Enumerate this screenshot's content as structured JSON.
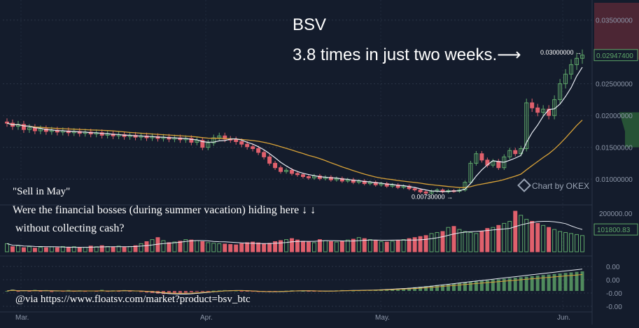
{
  "annotations": {
    "ticker": "BSV",
    "headline": "3.8 times in just two weeks.⟶",
    "sell_in_may": "\"Sell in May\"",
    "question_line1": "Were the financial bosses (during summer vacation) hiding here ↓ ↓",
    "question_line2": "without collecting cash?",
    "via": "@via https://www.floatsv.com/market?product=bsv_btc",
    "watermark": "Chart by OKEX"
  },
  "colors": {
    "background": "#141c2c",
    "up_candle": "#5fa86a",
    "down_candle": "#e0606c",
    "fast_ma": "#e8ecf4",
    "slow_ma": "#d8a238",
    "axis_text": "#8c96a8",
    "grid": "#2a3446"
  },
  "chart_data": {
    "type": "candlestick",
    "x_ticks": [
      "Mar.",
      "Apr.",
      "May.",
      "Jun."
    ],
    "price_axis": {
      "ticks": [
        "0.03500000",
        "0.02500000",
        "0.02000000",
        "0.01500000",
        "0.01000000"
      ],
      "ylim": [
        0.0065,
        0.0375
      ],
      "current_price_label": "0.02947400",
      "high_marker": {
        "label": "0.03000000 →",
        "value": 0.03
      },
      "low_marker": {
        "label": "0.00730000 →",
        "value": 0.0073
      }
    },
    "volume_axis": {
      "ticks": [
        "200000.00"
      ],
      "current_value_label": "101800.83"
    },
    "indicator_axis": {
      "ticks": [
        "0.00",
        "0.00",
        "-0.00",
        "-0.00"
      ]
    },
    "close": [
      0.0188,
      0.0183,
      0.0186,
      0.0178,
      0.0181,
      0.0176,
      0.0179,
      0.0175,
      0.0177,
      0.0174,
      0.0176,
      0.0173,
      0.0175,
      0.0172,
      0.0174,
      0.0171,
      0.0173,
      0.0169,
      0.0171,
      0.0168,
      0.017,
      0.0167,
      0.0169,
      0.0166,
      0.0168,
      0.0165,
      0.0167,
      0.0164,
      0.0166,
      0.0163,
      0.0165,
      0.0162,
      0.0164,
      0.0158,
      0.0161,
      0.015,
      0.0157,
      0.0165,
      0.0168,
      0.0163,
      0.0162,
      0.0159,
      0.0155,
      0.0151,
      0.0148,
      0.0142,
      0.0135,
      0.0125,
      0.0118,
      0.0112,
      0.0114,
      0.0109,
      0.0107,
      0.0104,
      0.0102,
      0.0105,
      0.0101,
      0.0103,
      0.0099,
      0.0101,
      0.0097,
      0.0099,
      0.0095,
      0.0097,
      0.0093,
      0.0095,
      0.0091,
      0.0093,
      0.0089,
      0.0091,
      0.0087,
      0.0089,
      0.0085,
      0.0083,
      0.008,
      0.0078,
      0.0081,
      0.0083,
      0.008,
      0.0082,
      0.0081,
      0.0083,
      0.0095,
      0.0125,
      0.014,
      0.013,
      0.0122,
      0.0128,
      0.0118,
      0.0135,
      0.0145,
      0.014,
      0.0148,
      0.022,
      0.0212,
      0.0205,
      0.021,
      0.02,
      0.0225,
      0.025,
      0.0265,
      0.028,
      0.029,
      0.0295
    ],
    "volume": [
      40,
      25,
      30,
      20,
      25,
      18,
      22,
      20,
      24,
      20,
      26,
      22,
      25,
      20,
      22,
      28,
      25,
      30,
      26,
      24,
      28,
      22,
      26,
      30,
      40,
      50,
      60,
      70,
      55,
      45,
      48,
      52,
      60,
      58,
      55,
      50,
      45,
      42,
      40,
      38,
      36,
      34,
      40,
      45,
      48,
      44,
      40,
      42,
      50,
      55,
      60,
      65,
      58,
      52,
      48,
      45,
      60,
      55,
      50,
      48,
      52,
      58,
      62,
      70,
      65,
      60,
      55,
      50,
      48,
      52,
      55,
      60,
      65,
      70,
      75,
      80,
      90,
      95,
      100,
      120,
      125,
      110,
      100,
      95,
      90,
      100,
      115,
      120,
      130,
      140,
      150,
      200,
      180,
      160,
      150,
      140,
      130,
      120,
      110,
      100,
      95,
      90,
      85,
      80
    ],
    "indicator": [
      0,
      0.5,
      -0.3,
      0.2,
      -0.1,
      0.4,
      -0.2,
      0.3,
      -0.4,
      0.1,
      -0.2,
      0.3,
      -0.1,
      0.2,
      -0.3,
      0.1,
      -0.2,
      0.4,
      -0.3,
      0.2,
      -0.1,
      0.3,
      -0.2,
      0.1,
      -0.4,
      -0.6,
      -0.8,
      -1,
      -1.2,
      -1.1,
      -1,
      -0.9,
      -0.7,
      -0.5,
      -0.3,
      -0.2,
      -0.1,
      0.1,
      0.2,
      0.3,
      0.2,
      0.1,
      -0.1,
      -0.2,
      -0.3,
      -0.4,
      -0.3,
      -0.2,
      -0.1,
      0,
      0.1,
      0.2,
      0.1,
      0,
      -0.1,
      -0.2,
      -0.1,
      0,
      0.1,
      0.2,
      0.3,
      0.2,
      0.1,
      0.2,
      0.3,
      0.4,
      0.5,
      0.6,
      0.7,
      0.8,
      0.9,
      1,
      1.2,
      1.4,
      1.6,
      1.8,
      2,
      2.2,
      2.4,
      2.6,
      2.8,
      3,
      3.2,
      3.4,
      3.6,
      3.8,
      4,
      4.2,
      4.4,
      4.6,
      4.8,
      5,
      5.2,
      5.4,
      5.6,
      5.8,
      6,
      6.2,
      6.4,
      6.6,
      6.8,
      7,
      7.2,
      7.4
    ]
  }
}
